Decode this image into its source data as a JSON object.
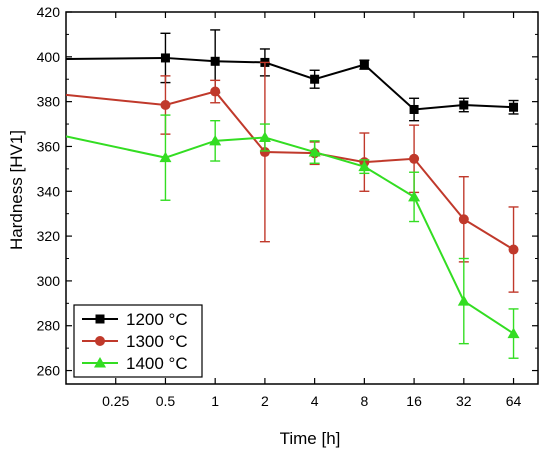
{
  "chart_data": {
    "type": "line",
    "xlabel": "Time [h]",
    "ylabel": "Hardness [HV1]",
    "x_scale": "log2",
    "x_ticks": [
      0.25,
      0.5,
      1,
      2,
      4,
      8,
      16,
      32,
      64
    ],
    "x_tick_labels": [
      "0.25",
      "0.5",
      "1",
      "2",
      "4",
      "8",
      "16",
      "32",
      "64"
    ],
    "xlim": [
      0.125,
      90
    ],
    "y_ticks": [
      260,
      280,
      300,
      320,
      340,
      360,
      380,
      400,
      420
    ],
    "y_tick_labels": [
      "260",
      "280",
      "300",
      "320",
      "340",
      "360",
      "380",
      "400",
      "420"
    ],
    "ylim": [
      254,
      420
    ],
    "grid": false,
    "legend_position": "bottom-left",
    "series": [
      {
        "name": "1200 °C",
        "color": "#000000",
        "marker": "square",
        "x": [
          0.125,
          0.5,
          1,
          2,
          4,
          8,
          16,
          32,
          64
        ],
        "y": [
          399,
          399.5,
          398,
          397.5,
          390,
          396.5,
          376.5,
          378.5,
          377.5
        ],
        "err": [
          0,
          11,
          14,
          6,
          4,
          2,
          5,
          3,
          3
        ]
      },
      {
        "name": "1300 °C",
        "color": "#c0392b",
        "marker": "circle",
        "x": [
          0.125,
          0.5,
          1,
          2,
          4,
          8,
          16,
          32,
          64
        ],
        "y": [
          383,
          378.5,
          384.5,
          357.5,
          357,
          353,
          354.5,
          327.5,
          314
        ],
        "err": [
          0,
          13,
          5,
          40,
          5,
          13,
          15,
          19,
          19
        ]
      },
      {
        "name": "1400 °C",
        "color": "#33dd22",
        "marker": "triangle",
        "x": [
          0.125,
          0.5,
          1,
          2,
          4,
          8,
          16,
          32,
          64
        ],
        "y": [
          364.5,
          355,
          362.5,
          364,
          357.5,
          351,
          337.5,
          291,
          276.5
        ],
        "err": [
          0,
          19,
          9,
          6,
          5,
          3,
          11,
          19,
          11
        ]
      }
    ]
  }
}
